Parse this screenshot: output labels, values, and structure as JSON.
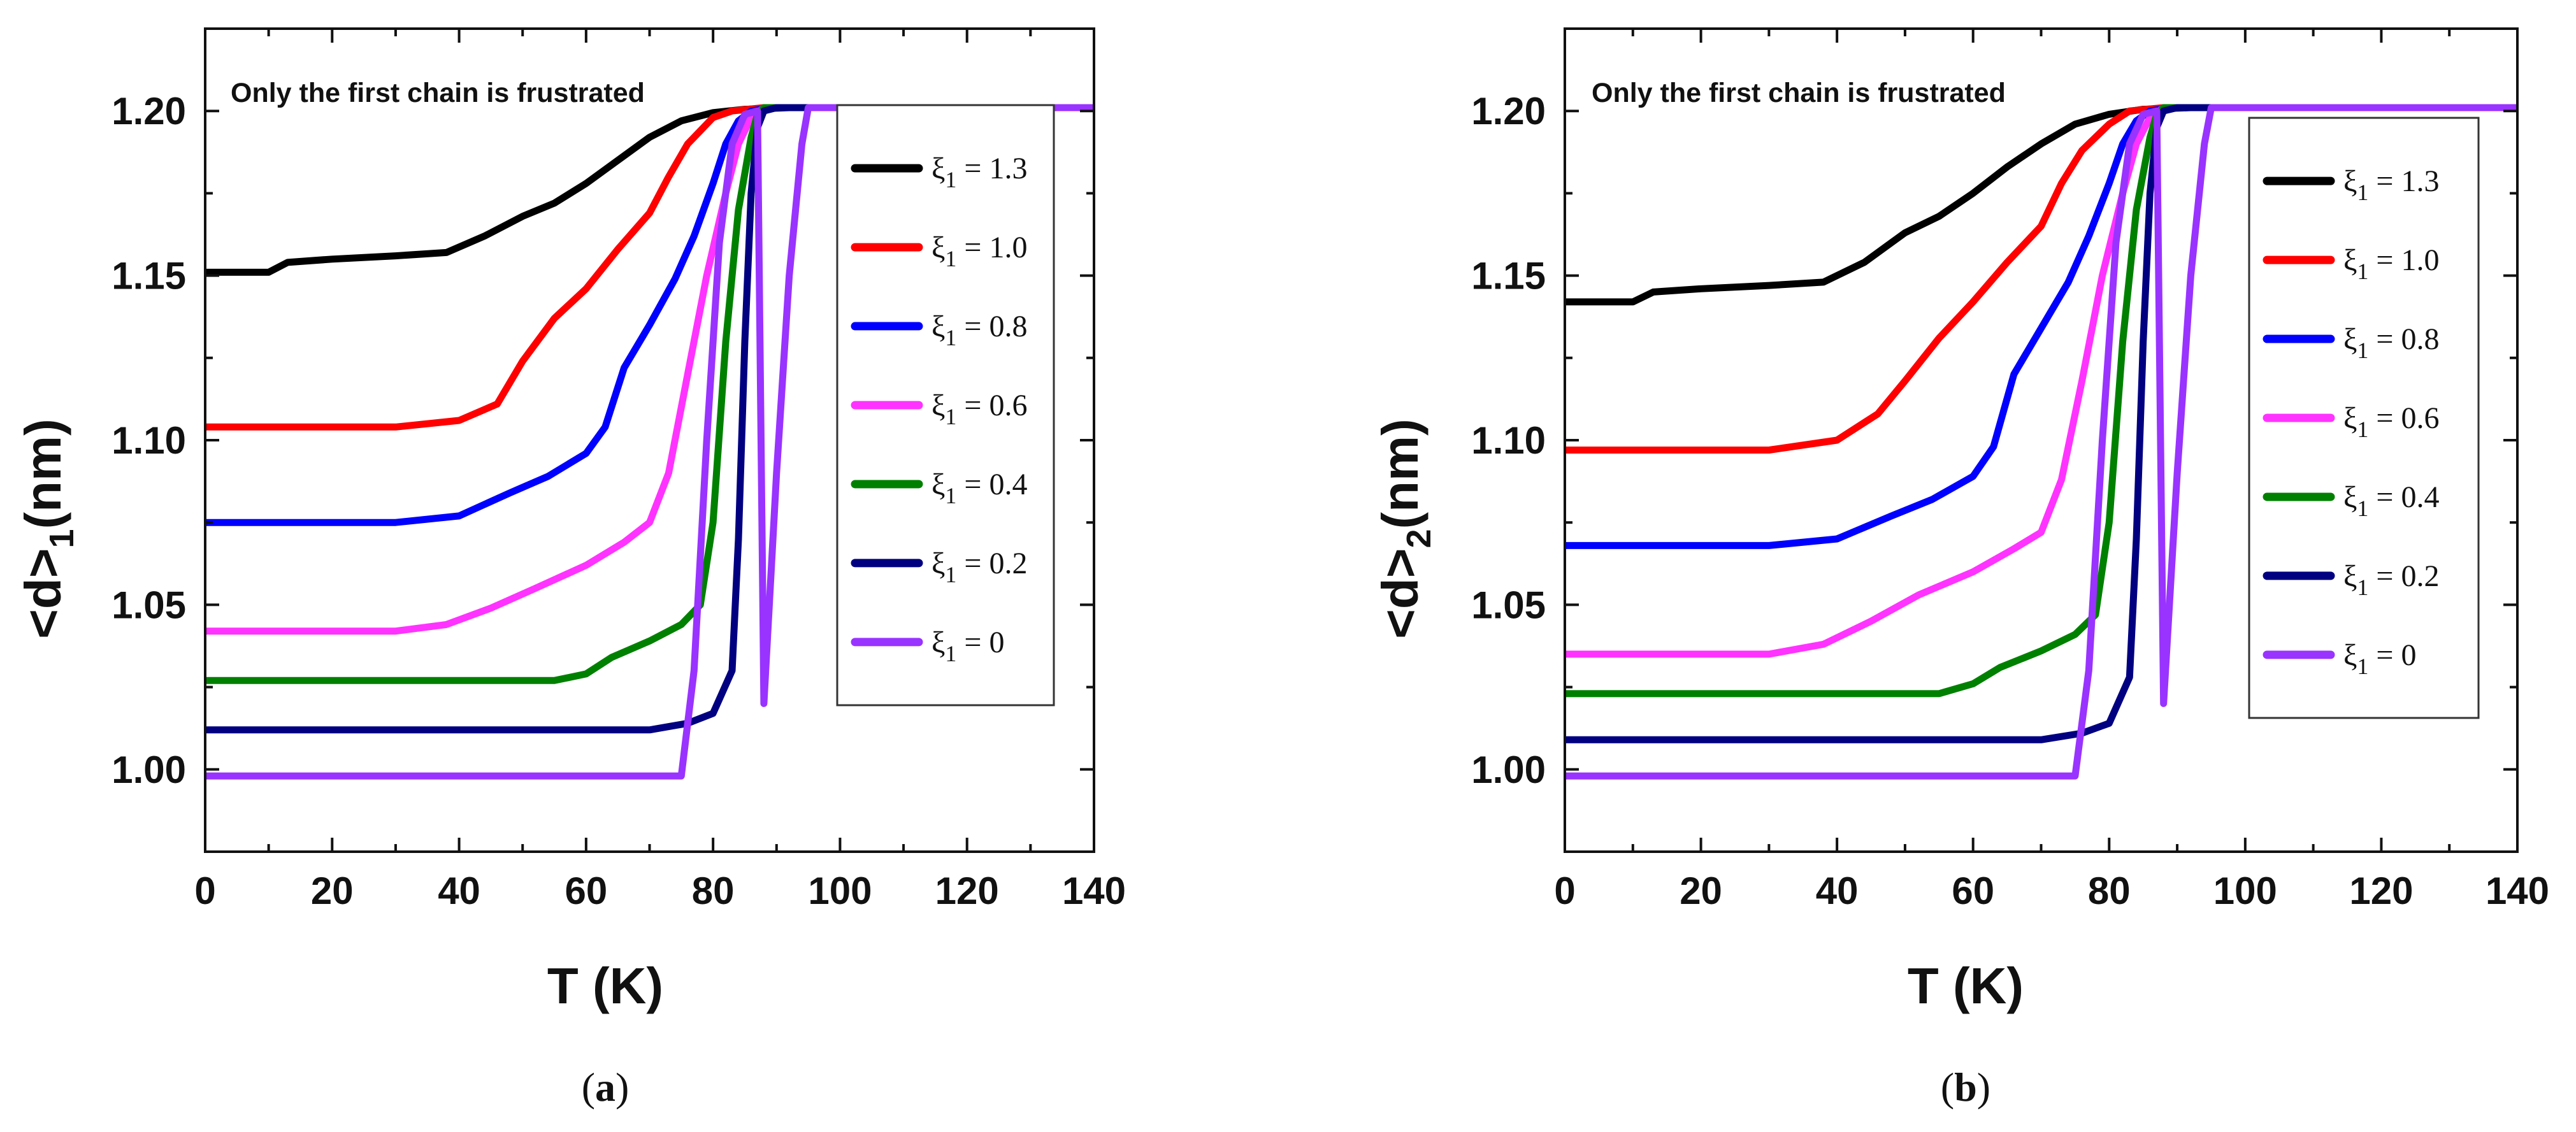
{
  "chart_data": [
    {
      "type": "line",
      "panel_label": "a",
      "annotation": "Only the first chain is frustrated",
      "xlabel": "T (K)",
      "ylabel_main": "<d>",
      "ylabel_sub": "1",
      "ylabel_unit": "(nm)",
      "xlim": [
        0,
        140
      ],
      "ylim": [
        0.975,
        1.225
      ],
      "x_ticks": [
        "0",
        "20",
        "40",
        "60",
        "80",
        "100",
        "120",
        "140"
      ],
      "y_ticks": [
        "1.00",
        "1.05",
        "1.10",
        "1.15",
        "1.20"
      ],
      "legend_position": "right",
      "series": [
        {
          "name": "ξ1 = 1.3",
          "color": "#000000",
          "points": [
            [
              0,
              1.151
            ],
            [
              10,
              1.151
            ],
            [
              13,
              1.154
            ],
            [
              20,
              1.155
            ],
            [
              30,
              1.156
            ],
            [
              38,
              1.157
            ],
            [
              44,
              1.162
            ],
            [
              50,
              1.168
            ],
            [
              55,
              1.172
            ],
            [
              60,
              1.178
            ],
            [
              65,
              1.185
            ],
            [
              70,
              1.192
            ],
            [
              75,
              1.197
            ],
            [
              80,
              1.1995
            ],
            [
              85,
              1.2005
            ],
            [
              92,
              1.201
            ],
            [
              140,
              1.201
            ]
          ]
        },
        {
          "name": "ξ1 = 1.0",
          "color": "#ff0000",
          "points": [
            [
              0,
              1.104
            ],
            [
              30,
              1.104
            ],
            [
              40,
              1.106
            ],
            [
              46,
              1.111
            ],
            [
              50,
              1.124
            ],
            [
              55,
              1.137
            ],
            [
              60,
              1.146
            ],
            [
              65,
              1.158
            ],
            [
              70,
              1.169
            ],
            [
              73,
              1.18
            ],
            [
              76,
              1.19
            ],
            [
              80,
              1.198
            ],
            [
              83,
              1.2
            ],
            [
              88,
              1.201
            ],
            [
              140,
              1.201
            ]
          ]
        },
        {
          "name": "ξ1 = 0.8",
          "color": "#0000ff",
          "points": [
            [
              0,
              1.075
            ],
            [
              30,
              1.075
            ],
            [
              40,
              1.077
            ],
            [
              48,
              1.084
            ],
            [
              54,
              1.089
            ],
            [
              60,
              1.096
            ],
            [
              63,
              1.104
            ],
            [
              66,
              1.122
            ],
            [
              70,
              1.135
            ],
            [
              74,
              1.149
            ],
            [
              77,
              1.162
            ],
            [
              80,
              1.178
            ],
            [
              82,
              1.19
            ],
            [
              84,
              1.197
            ],
            [
              86,
              1.2
            ],
            [
              89,
              1.201
            ],
            [
              140,
              1.201
            ]
          ]
        },
        {
          "name": "ξ1 = 0.6",
          "color": "#ff33ff",
          "points": [
            [
              0,
              1.042
            ],
            [
              30,
              1.042
            ],
            [
              38,
              1.044
            ],
            [
              45,
              1.049
            ],
            [
              52,
              1.055
            ],
            [
              60,
              1.062
            ],
            [
              66,
              1.069
            ],
            [
              70,
              1.075
            ],
            [
              73,
              1.09
            ],
            [
              76,
              1.12
            ],
            [
              79,
              1.15
            ],
            [
              82,
              1.175
            ],
            [
              84,
              1.19
            ],
            [
              86,
              1.198
            ],
            [
              88,
              1.201
            ],
            [
              140,
              1.201
            ]
          ]
        },
        {
          "name": "ξ1 = 0.4",
          "color": "#008000",
          "points": [
            [
              0,
              1.027
            ],
            [
              55,
              1.027
            ],
            [
              60,
              1.029
            ],
            [
              64,
              1.034
            ],
            [
              70,
              1.039
            ],
            [
              75,
              1.044
            ],
            [
              78,
              1.05
            ],
            [
              80,
              1.075
            ],
            [
              82,
              1.13
            ],
            [
              84,
              1.17
            ],
            [
              86,
              1.192
            ],
            [
              87,
              1.199
            ],
            [
              88,
              1.201
            ],
            [
              140,
              1.201
            ]
          ]
        },
        {
          "name": "ξ1 = 0.2",
          "color": "#000080",
          "points": [
            [
              0,
              1.012
            ],
            [
              70,
              1.012
            ],
            [
              76,
              1.014
            ],
            [
              80,
              1.017
            ],
            [
              83,
              1.03
            ],
            [
              84,
              1.07
            ],
            [
              85,
              1.13
            ],
            [
              86,
              1.175
            ],
            [
              87,
              1.195
            ],
            [
              88,
              1.2
            ],
            [
              90,
              1.201
            ],
            [
              140,
              1.201
            ]
          ]
        },
        {
          "name": "ξ1 = 0",
          "color": "#9933ff",
          "points": [
            [
              0,
              0.998
            ],
            [
              75,
              0.998
            ],
            [
              77,
              1.03
            ],
            [
              79,
              1.1
            ],
            [
              81,
              1.16
            ],
            [
              83,
              1.19
            ],
            [
              85,
              1.199
            ],
            [
              87,
              1.2
            ],
            [
              88,
              1.02
            ],
            [
              90,
              1.09
            ],
            [
              92,
              1.15
            ],
            [
              94,
              1.19
            ],
            [
              95,
              1.201
            ],
            [
              140,
              1.201
            ]
          ]
        }
      ]
    },
    {
      "type": "line",
      "panel_label": "b",
      "annotation": "Only the first chain is frustrated",
      "xlabel": "T (K)",
      "ylabel_main": "<d>",
      "ylabel_sub": "2",
      "ylabel_unit": "(nm)",
      "xlim": [
        0,
        140
      ],
      "ylim": [
        0.975,
        1.225
      ],
      "x_ticks": [
        "0",
        "20",
        "40",
        "60",
        "80",
        "100",
        "120",
        "140"
      ],
      "y_ticks": [
        "1.00",
        "1.05",
        "1.10",
        "1.15",
        "1.20"
      ],
      "legend_position": "right",
      "series": [
        {
          "name": "ξ1 = 1.3",
          "color": "#000000",
          "points": [
            [
              0,
              1.142
            ],
            [
              10,
              1.142
            ],
            [
              13,
              1.145
            ],
            [
              20,
              1.146
            ],
            [
              30,
              1.147
            ],
            [
              38,
              1.148
            ],
            [
              44,
              1.154
            ],
            [
              50,
              1.163
            ],
            [
              55,
              1.168
            ],
            [
              60,
              1.175
            ],
            [
              65,
              1.183
            ],
            [
              70,
              1.19
            ],
            [
              75,
              1.196
            ],
            [
              80,
              1.199
            ],
            [
              85,
              1.2005
            ],
            [
              92,
              1.201
            ],
            [
              140,
              1.201
            ]
          ]
        },
        {
          "name": "ξ1 = 1.0",
          "color": "#ff0000",
          "points": [
            [
              0,
              1.097
            ],
            [
              30,
              1.097
            ],
            [
              40,
              1.1
            ],
            [
              46,
              1.108
            ],
            [
              50,
              1.118
            ],
            [
              55,
              1.131
            ],
            [
              60,
              1.142
            ],
            [
              65,
              1.154
            ],
            [
              70,
              1.165
            ],
            [
              73,
              1.178
            ],
            [
              76,
              1.188
            ],
            [
              80,
              1.196
            ],
            [
              83,
              1.2
            ],
            [
              88,
              1.201
            ],
            [
              140,
              1.201
            ]
          ]
        },
        {
          "name": "ξ1 = 0.8",
          "color": "#0000ff",
          "points": [
            [
              0,
              1.068
            ],
            [
              30,
              1.068
            ],
            [
              40,
              1.07
            ],
            [
              48,
              1.077
            ],
            [
              54,
              1.082
            ],
            [
              60,
              1.089
            ],
            [
              63,
              1.098
            ],
            [
              66,
              1.12
            ],
            [
              70,
              1.134
            ],
            [
              74,
              1.148
            ],
            [
              77,
              1.162
            ],
            [
              80,
              1.178
            ],
            [
              82,
              1.19
            ],
            [
              84,
              1.197
            ],
            [
              86,
              1.2
            ],
            [
              89,
              1.201
            ],
            [
              140,
              1.201
            ]
          ]
        },
        {
          "name": "ξ1 = 0.6",
          "color": "#ff33ff",
          "points": [
            [
              0,
              1.035
            ],
            [
              30,
              1.035
            ],
            [
              38,
              1.038
            ],
            [
              45,
              1.045
            ],
            [
              52,
              1.053
            ],
            [
              60,
              1.06
            ],
            [
              66,
              1.067
            ],
            [
              70,
              1.072
            ],
            [
              73,
              1.088
            ],
            [
              76,
              1.118
            ],
            [
              79,
              1.15
            ],
            [
              82,
              1.175
            ],
            [
              84,
              1.19
            ],
            [
              86,
              1.198
            ],
            [
              88,
              1.201
            ],
            [
              140,
              1.201
            ]
          ]
        },
        {
          "name": "ξ1 = 0.4",
          "color": "#008000",
          "points": [
            [
              0,
              1.023
            ],
            [
              55,
              1.023
            ],
            [
              60,
              1.026
            ],
            [
              64,
              1.031
            ],
            [
              70,
              1.036
            ],
            [
              75,
              1.041
            ],
            [
              78,
              1.047
            ],
            [
              80,
              1.075
            ],
            [
              82,
              1.13
            ],
            [
              84,
              1.17
            ],
            [
              86,
              1.192
            ],
            [
              87,
              1.199
            ],
            [
              88,
              1.201
            ],
            [
              140,
              1.201
            ]
          ]
        },
        {
          "name": "ξ1 = 0.2",
          "color": "#000080",
          "points": [
            [
              0,
              1.009
            ],
            [
              70,
              1.009
            ],
            [
              76,
              1.011
            ],
            [
              80,
              1.014
            ],
            [
              83,
              1.028
            ],
            [
              84,
              1.07
            ],
            [
              85,
              1.13
            ],
            [
              86,
              1.175
            ],
            [
              87,
              1.195
            ],
            [
              88,
              1.2
            ],
            [
              90,
              1.201
            ],
            [
              140,
              1.201
            ]
          ]
        },
        {
          "name": "ξ1 = 0",
          "color": "#9933ff",
          "points": [
            [
              0,
              0.998
            ],
            [
              75,
              0.998
            ],
            [
              77,
              1.03
            ],
            [
              79,
              1.1
            ],
            [
              81,
              1.16
            ],
            [
              83,
              1.19
            ],
            [
              85,
              1.199
            ],
            [
              87,
              1.2
            ],
            [
              88,
              1.02
            ],
            [
              90,
              1.09
            ],
            [
              92,
              1.15
            ],
            [
              94,
              1.19
            ],
            [
              95,
              1.201
            ],
            [
              140,
              1.201
            ]
          ]
        }
      ]
    }
  ]
}
